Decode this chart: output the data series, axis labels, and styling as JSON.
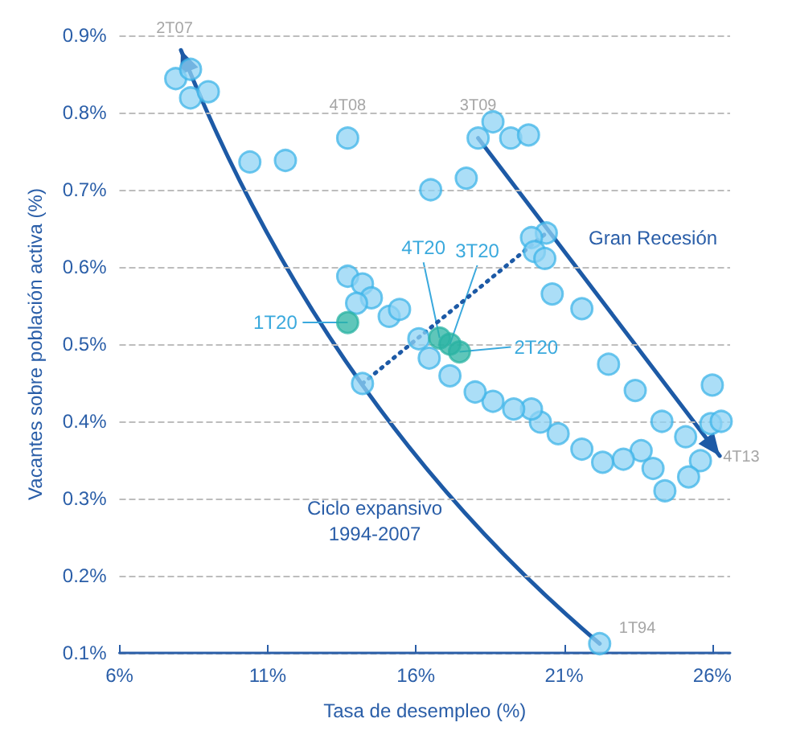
{
  "chart_data": {
    "type": "scatter",
    "xlabel": "Tasa de desempleo (%)",
    "ylabel": "Vacantes sobre población activa (%)",
    "xlim": [
      6,
      26.6
    ],
    "xticks": [
      {
        "value": 6,
        "label": "6%"
      },
      {
        "value": 11,
        "label": "11%"
      },
      {
        "value": 16,
        "label": "16%"
      },
      {
        "value": 21,
        "label": "21%"
      },
      {
        "value": 26,
        "label": "26%"
      }
    ],
    "ylim": [
      0.1,
      0.9
    ],
    "yticks": [
      {
        "value": 0.1,
        "label": "0.1%"
      },
      {
        "value": 0.2,
        "label": "0.2%"
      },
      {
        "value": 0.3,
        "label": "0.3%"
      },
      {
        "value": 0.4,
        "label": "0.4%"
      },
      {
        "value": 0.5,
        "label": "0.5%"
      },
      {
        "value": 0.6,
        "label": "0.6%"
      },
      {
        "value": 0.7,
        "label": "0.7%"
      },
      {
        "value": 0.8,
        "label": "0.8%"
      },
      {
        "value": 0.9,
        "label": "0.9%"
      }
    ],
    "grid": "y",
    "marker": "circle",
    "series": [
      {
        "color": "#8fd3f4",
        "x": [
          7.9,
          8.4,
          8.4,
          9.0,
          10.4,
          11.6,
          13.7,
          16.5,
          17.7,
          18.1,
          18.6,
          19.2,
          19.8,
          20.4,
          19.9,
          20.0,
          20.35,
          20.6,
          21.6,
          22.5,
          23.4,
          26.0,
          24.3,
          25.1,
          25.95,
          26.3,
          25.6,
          25.2,
          24.4,
          24.0,
          23.6,
          23.0,
          22.3,
          21.6,
          20.8,
          20.2,
          19.9,
          19.3,
          18.6,
          18.0,
          17.15,
          16.45,
          16.1,
          22.2,
          13.7,
          14.2,
          14.5,
          14.0,
          15.1,
          15.45,
          14.2
        ],
        "values": [
          0.844,
          0.856,
          0.819,
          0.827,
          0.736,
          0.738,
          0.767,
          0.7,
          0.715,
          0.767,
          0.788,
          0.767,
          0.771,
          0.644,
          0.638,
          0.62,
          0.611,
          0.565,
          0.546,
          0.474,
          0.44,
          0.447,
          0.4,
          0.38,
          0.397,
          0.4,
          0.349,
          0.328,
          0.31,
          0.339,
          0.362,
          0.351,
          0.347,
          0.364,
          0.384,
          0.399,
          0.416,
          0.416,
          0.426,
          0.438,
          0.459,
          0.482,
          0.507,
          0.112,
          0.588,
          0.578,
          0.56,
          0.553,
          0.536,
          0.545,
          0.449
        ]
      },
      {
        "color": "#2ab3a3",
        "x": [
          13.7,
          16.8,
          17.15,
          17.47
        ],
        "values": [
          0.528,
          0.508,
          0.5,
          0.49
        ]
      },
      {
        "type": "line",
        "color": "#1d5aa6",
        "line_style": "dotted",
        "marker": "none",
        "x": [
          14.2,
          20.4
        ],
        "values": [
          0.449,
          0.644
        ]
      }
    ],
    "annotations": [
      {
        "text": "2T07",
        "x": 8.4,
        "y": 0.856
      },
      {
        "text": "4T08",
        "x": 13.7,
        "y": 0.767
      },
      {
        "text": "3T09",
        "x": 18.1,
        "y": 0.767
      },
      {
        "text": "4T13",
        "x": 25.6,
        "y": 0.349
      },
      {
        "text": "1T94",
        "x": 22.2,
        "y": 0.112
      },
      {
        "text": "1T20",
        "x": 13.7,
        "y": 0.528
      },
      {
        "text": "4T20",
        "x": 16.8,
        "y": 0.508
      },
      {
        "text": "3T20",
        "x": 17.15,
        "y": 0.5
      },
      {
        "text": "2T20",
        "x": 17.47,
        "y": 0.49
      },
      "Gran Recesión",
      "Ciclo expansivo\n1994-2007"
    ]
  }
}
